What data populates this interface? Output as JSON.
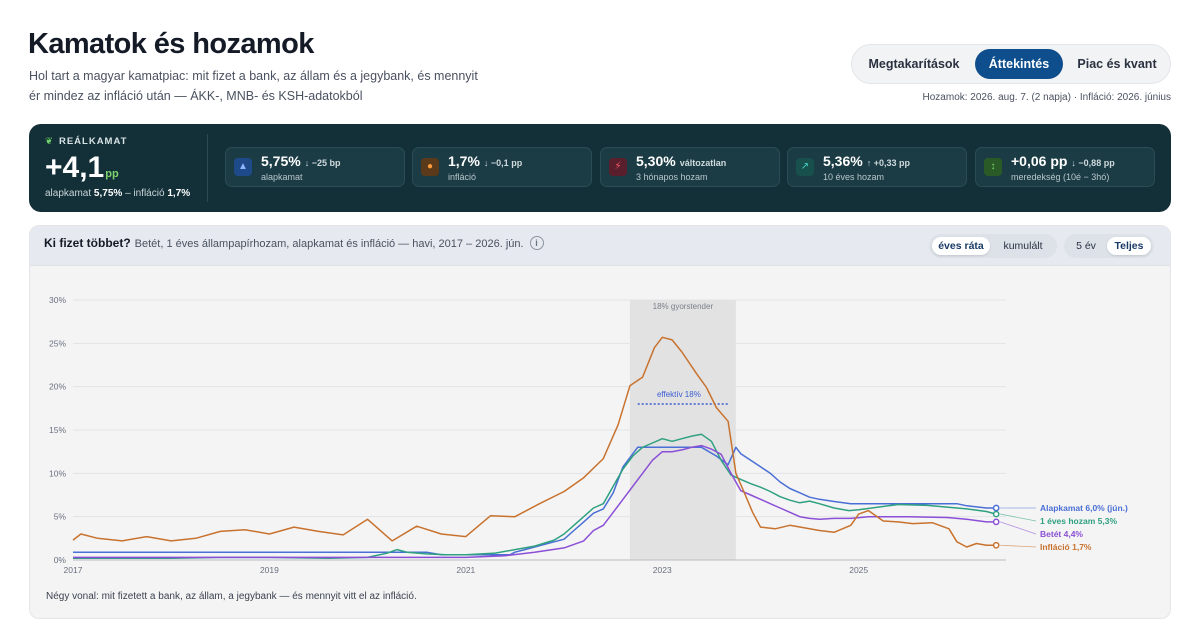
{
  "header": {
    "title": "Kamatok és hozamok",
    "subtitle": "Hol tart a magyar kamatpiac: mit fizet a bank, az állam és a jegybank, és mennyit ér mindez az infláció után — ÁKK-, MNB- és KSH-adatokból",
    "tabs": [
      {
        "label": "Megtakarítások",
        "active": false
      },
      {
        "label": "Áttekintés",
        "active": true
      },
      {
        "label": "Piac és kvant",
        "active": false
      }
    ],
    "data_note": "Hozamok: 2026. aug. 7. (2 napja) · Infláció: 2026. június"
  },
  "summary": {
    "real_rate": {
      "label": "REÁLKAMAT",
      "value": "+4,1",
      "unit": "pp",
      "note_prefix": "alapkamat",
      "note_policy": "5,75%",
      "note_mid": "– infláció",
      "note_infl": "1,7%",
      "icon": "sprout-icon"
    },
    "kpis": [
      {
        "value": "5,75%",
        "change": "↓ −25 bp",
        "label": "alapkamat",
        "icon": "bank-icon",
        "color": "#4a7fd6"
      },
      {
        "value": "1,7%",
        "change": "↓ −0,1 pp",
        "label": "infláció",
        "icon": "flame-icon",
        "color": "#e08a3a"
      },
      {
        "value": "5,30%",
        "change": "változatlan",
        "label": "3 hónapos hozam",
        "icon": "bolt-icon",
        "color": "#e0455a"
      },
      {
        "value": "5,36%",
        "change": "↑ +0,33 pp",
        "label": "10 éves hozam",
        "icon": "trend-icon",
        "color": "#2aa8a0"
      },
      {
        "value": "+0,06 pp",
        "change": "↓ −0,88 pp",
        "label": "meredekség (10é − 3hó)",
        "icon": "updown-icon",
        "color": "#5ab04a"
      }
    ]
  },
  "chart_panel": {
    "title": "Ki fizet többet?",
    "description": "Betét, 1 éves állampapírhozam, alapkamat és infláció — havi, 2017 – 2026. jún.",
    "info_icon": "i",
    "mode_buttons": [
      {
        "label": "éves ráta",
        "active": true
      },
      {
        "label": "kumulált",
        "active": false
      }
    ],
    "range_buttons": [
      {
        "label": "5 év",
        "active": false
      },
      {
        "label": "Teljes",
        "active": true
      }
    ],
    "footnote": "Négy vonal: mit fizetett a bank, az állam, a jegybank — és mennyit vitt el az infláció."
  },
  "chart_data": {
    "type": "line",
    "x_range": [
      2017.0,
      2026.5
    ],
    "x_ticks": [
      {
        "value": 2017,
        "label": "2017"
      },
      {
        "value": 2019,
        "label": "2019"
      },
      {
        "value": 2021,
        "label": "2021"
      },
      {
        "value": 2023,
        "label": "2023"
      },
      {
        "value": 2025,
        "label": "2025"
      }
    ],
    "ylim": [
      0,
      30
    ],
    "y_ticks": [
      {
        "value": 0,
        "label": "0%"
      },
      {
        "value": 5,
        "label": "5%"
      },
      {
        "value": 10,
        "label": "10%"
      },
      {
        "value": 15,
        "label": "15%"
      },
      {
        "value": 20,
        "label": "20%"
      },
      {
        "value": 25,
        "label": "25%"
      },
      {
        "value": 30,
        "label": "30%"
      }
    ],
    "grid": true,
    "shaded_band": {
      "x_start": 2022.67,
      "x_end": 2023.75,
      "label": "18% gyorstender"
    },
    "reference_segment": {
      "x_start": 2022.75,
      "x_end": 2023.67,
      "y": 18,
      "label": "effektív 18%"
    },
    "series": [
      {
        "name": "Alapkamat",
        "end_label": "Alapkamat 6,0% (jún.)",
        "color": "#4a6fd6",
        "points": [
          [
            2017.0,
            0.9
          ],
          [
            2020.6,
            0.9
          ],
          [
            2020.75,
            0.6
          ],
          [
            2021.45,
            0.6
          ],
          [
            2021.5,
            0.9
          ],
          [
            2021.6,
            1.2
          ],
          [
            2021.7,
            1.5
          ],
          [
            2021.8,
            1.8
          ],
          [
            2021.9,
            2.1
          ],
          [
            2022.0,
            2.4
          ],
          [
            2022.1,
            3.4
          ],
          [
            2022.2,
            4.4
          ],
          [
            2022.3,
            5.4
          ],
          [
            2022.4,
            5.9
          ],
          [
            2022.5,
            7.75
          ],
          [
            2022.6,
            10.75
          ],
          [
            2022.75,
            13.0
          ],
          [
            2022.9,
            13.0
          ],
          [
            2023.4,
            13.0
          ],
          [
            2023.55,
            12.0
          ],
          [
            2023.67,
            11.0
          ],
          [
            2023.75,
            13.0
          ],
          [
            2023.8,
            12.25
          ],
          [
            2023.9,
            11.5
          ],
          [
            2024.0,
            10.75
          ],
          [
            2024.1,
            10.0
          ],
          [
            2024.2,
            9.0
          ],
          [
            2024.3,
            8.25
          ],
          [
            2024.4,
            7.75
          ],
          [
            2024.5,
            7.25
          ],
          [
            2024.6,
            7.0
          ],
          [
            2024.75,
            6.75
          ],
          [
            2024.92,
            6.5
          ],
          [
            2026.0,
            6.5
          ],
          [
            2026.1,
            6.25
          ],
          [
            2026.3,
            6.0
          ],
          [
            2026.4,
            6.0
          ]
        ]
      },
      {
        "name": "1 éves hozam",
        "end_label": "1 éves hozam 5,3%",
        "color": "#2fa080",
        "points": [
          [
            2017.0,
            0.2
          ],
          [
            2018.0,
            0.2
          ],
          [
            2018.5,
            0.3
          ],
          [
            2019.0,
            0.3
          ],
          [
            2019.6,
            0.2
          ],
          [
            2020.0,
            0.3
          ],
          [
            2020.2,
            0.8
          ],
          [
            2020.3,
            1.2
          ],
          [
            2020.4,
            0.9
          ],
          [
            2020.6,
            0.7
          ],
          [
            2020.8,
            0.6
          ],
          [
            2021.0,
            0.6
          ],
          [
            2021.3,
            0.8
          ],
          [
            2021.5,
            1.2
          ],
          [
            2021.7,
            1.6
          ],
          [
            2021.9,
            2.3
          ],
          [
            2022.0,
            3.0
          ],
          [
            2022.1,
            4.0
          ],
          [
            2022.2,
            5.0
          ],
          [
            2022.3,
            6.0
          ],
          [
            2022.4,
            6.5
          ],
          [
            2022.5,
            8.5
          ],
          [
            2022.6,
            10.5
          ],
          [
            2022.7,
            12.0
          ],
          [
            2022.8,
            13.0
          ],
          [
            2022.9,
            13.5
          ],
          [
            2023.0,
            14.0
          ],
          [
            2023.1,
            13.7
          ],
          [
            2023.2,
            14.0
          ],
          [
            2023.3,
            14.3
          ],
          [
            2023.4,
            14.5
          ],
          [
            2023.5,
            13.7
          ],
          [
            2023.6,
            11.5
          ],
          [
            2023.7,
            9.8
          ],
          [
            2023.8,
            9.3
          ],
          [
            2023.9,
            8.8
          ],
          [
            2024.0,
            8.4
          ],
          [
            2024.1,
            7.9
          ],
          [
            2024.2,
            7.3
          ],
          [
            2024.3,
            6.9
          ],
          [
            2024.4,
            6.6
          ],
          [
            2024.5,
            6.8
          ],
          [
            2024.6,
            6.5
          ],
          [
            2024.75,
            6.0
          ],
          [
            2024.9,
            5.7
          ],
          [
            2025.0,
            5.8
          ],
          [
            2025.2,
            6.1
          ],
          [
            2025.4,
            6.4
          ],
          [
            2025.7,
            6.3
          ],
          [
            2025.9,
            6.1
          ],
          [
            2026.1,
            5.9
          ],
          [
            2026.3,
            5.6
          ],
          [
            2026.4,
            5.3
          ]
        ]
      },
      {
        "name": "Betét",
        "end_label": "Betét 4,4%",
        "color": "#8a4fd6",
        "points": [
          [
            2017.0,
            0.3
          ],
          [
            2019.0,
            0.3
          ],
          [
            2020.0,
            0.3
          ],
          [
            2021.0,
            0.3
          ],
          [
            2021.4,
            0.5
          ],
          [
            2021.7,
            0.9
          ],
          [
            2022.0,
            1.4
          ],
          [
            2022.2,
            2.2
          ],
          [
            2022.3,
            3.4
          ],
          [
            2022.4,
            4.0
          ],
          [
            2022.5,
            5.5
          ],
          [
            2022.6,
            7.0
          ],
          [
            2022.7,
            8.5
          ],
          [
            2022.8,
            10.0
          ],
          [
            2022.9,
            11.5
          ],
          [
            2023.0,
            12.5
          ],
          [
            2023.1,
            12.5
          ],
          [
            2023.2,
            12.7
          ],
          [
            2023.3,
            13.0
          ],
          [
            2023.4,
            13.2
          ],
          [
            2023.5,
            12.8
          ],
          [
            2023.6,
            12.2
          ],
          [
            2023.7,
            10.0
          ],
          [
            2023.8,
            8.0
          ],
          [
            2023.9,
            7.5
          ],
          [
            2024.0,
            7.0
          ],
          [
            2024.1,
            6.5
          ],
          [
            2024.2,
            6.0
          ],
          [
            2024.3,
            5.5
          ],
          [
            2024.4,
            5.0
          ],
          [
            2024.5,
            4.8
          ],
          [
            2024.6,
            4.7
          ],
          [
            2024.75,
            4.8
          ],
          [
            2024.92,
            4.8
          ],
          [
            2025.1,
            5.0
          ],
          [
            2025.5,
            5.0
          ],
          [
            2025.9,
            4.9
          ],
          [
            2026.1,
            4.7
          ],
          [
            2026.3,
            4.4
          ],
          [
            2026.4,
            4.4
          ]
        ]
      },
      {
        "name": "Infláció",
        "end_label": "Infláció 1,7%",
        "color": "#c8722e",
        "points": [
          [
            2017.0,
            2.3
          ],
          [
            2017.08,
            3.0
          ],
          [
            2017.25,
            2.5
          ],
          [
            2017.5,
            2.2
          ],
          [
            2017.75,
            2.7
          ],
          [
            2018.0,
            2.2
          ],
          [
            2018.25,
            2.5
          ],
          [
            2018.5,
            3.3
          ],
          [
            2018.75,
            3.5
          ],
          [
            2019.0,
            3.0
          ],
          [
            2019.25,
            3.8
          ],
          [
            2019.5,
            3.3
          ],
          [
            2019.75,
            2.9
          ],
          [
            2020.0,
            4.7
          ],
          [
            2020.25,
            2.2
          ],
          [
            2020.5,
            3.9
          ],
          [
            2020.75,
            3.0
          ],
          [
            2021.0,
            2.7
          ],
          [
            2021.25,
            5.1
          ],
          [
            2021.5,
            5.0
          ],
          [
            2021.75,
            6.5
          ],
          [
            2022.0,
            7.9
          ],
          [
            2022.2,
            9.5
          ],
          [
            2022.4,
            11.7
          ],
          [
            2022.55,
            15.6
          ],
          [
            2022.67,
            20.1
          ],
          [
            2022.8,
            21.1
          ],
          [
            2022.92,
            24.5
          ],
          [
            2023.0,
            25.7
          ],
          [
            2023.1,
            25.4
          ],
          [
            2023.2,
            24.0
          ],
          [
            2023.35,
            21.5
          ],
          [
            2023.45,
            19.9
          ],
          [
            2023.55,
            17.6
          ],
          [
            2023.67,
            16.0
          ],
          [
            2023.75,
            10.0
          ],
          [
            2023.83,
            7.9
          ],
          [
            2023.92,
            5.5
          ],
          [
            2024.0,
            3.8
          ],
          [
            2024.15,
            3.6
          ],
          [
            2024.3,
            4.0
          ],
          [
            2024.45,
            3.7
          ],
          [
            2024.6,
            3.4
          ],
          [
            2024.75,
            3.2
          ],
          [
            2024.92,
            4.0
          ],
          [
            2025.0,
            5.3
          ],
          [
            2025.1,
            5.7
          ],
          [
            2025.25,
            4.5
          ],
          [
            2025.4,
            4.4
          ],
          [
            2025.55,
            4.2
          ],
          [
            2025.75,
            4.3
          ],
          [
            2025.92,
            3.6
          ],
          [
            2026.0,
            2.1
          ],
          [
            2026.1,
            1.5
          ],
          [
            2026.2,
            1.9
          ],
          [
            2026.3,
            1.7
          ],
          [
            2026.4,
            1.7
          ]
        ]
      }
    ]
  }
}
